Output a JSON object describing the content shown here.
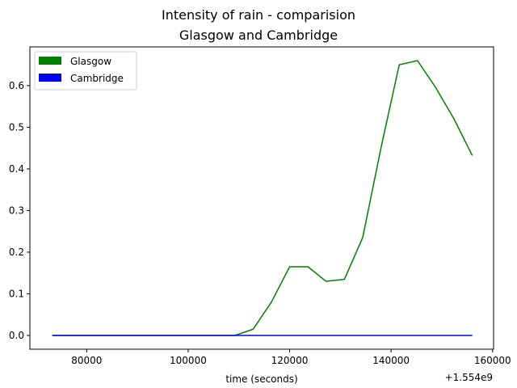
{
  "chart_data": {
    "type": "line",
    "title": "Intensity of rain - comparision",
    "subtitle": "Glasgow and Cambridge",
    "xlabel": "time (seconds)",
    "ylabel": "",
    "x_offset_label": "+1.554e9",
    "xlim": [
      1554068800,
      1554160200
    ],
    "ylim": [
      -0.033,
      0.693
    ],
    "x_ticks": [
      {
        "value": 1554080000,
        "label": "80000"
      },
      {
        "value": 1554100000,
        "label": "100000"
      },
      {
        "value": 1554120000,
        "label": "120000"
      },
      {
        "value": 1554140000,
        "label": "140000"
      },
      {
        "value": 1554160000,
        "label": "160000"
      }
    ],
    "y_ticks": [
      {
        "value": 0.0,
        "label": "0.0"
      },
      {
        "value": 0.1,
        "label": "0.1"
      },
      {
        "value": 0.2,
        "label": "0.2"
      },
      {
        "value": 0.3,
        "label": "0.3"
      },
      {
        "value": 0.4,
        "label": "0.4"
      },
      {
        "value": 0.5,
        "label": "0.5"
      },
      {
        "value": 0.6,
        "label": "0.6"
      }
    ],
    "grid": false,
    "legend_position": "top-left",
    "series": [
      {
        "name": "Glasgow",
        "color": "#008000",
        "points": [
          [
            1554073200,
            0.0
          ],
          [
            1554076800,
            0.0
          ],
          [
            1554080400,
            0.0
          ],
          [
            1554084000,
            0.0
          ],
          [
            1554087600,
            0.0
          ],
          [
            1554091200,
            0.0
          ],
          [
            1554094800,
            0.0
          ],
          [
            1554098400,
            0.0
          ],
          [
            1554102000,
            0.0
          ],
          [
            1554105600,
            0.0
          ],
          [
            1554109200,
            0.0
          ],
          [
            1554112800,
            0.015
          ],
          [
            1554116400,
            0.08
          ],
          [
            1554120000,
            0.165
          ],
          [
            1554123600,
            0.165
          ],
          [
            1554127200,
            0.13
          ],
          [
            1554130800,
            0.135
          ],
          [
            1554134400,
            0.235
          ],
          [
            1554138000,
            0.45
          ],
          [
            1554141600,
            0.65
          ],
          [
            1554145200,
            0.66
          ],
          [
            1554148800,
            0.595
          ],
          [
            1554152400,
            0.52
          ],
          [
            1554156000,
            0.432
          ]
        ]
      },
      {
        "name": "Cambridge",
        "color": "#0000ff",
        "points": [
          [
            1554073200,
            0.0
          ],
          [
            1554076800,
            0.0
          ],
          [
            1554080400,
            0.0
          ],
          [
            1554084000,
            0.0
          ],
          [
            1554087600,
            0.0
          ],
          [
            1554091200,
            0.0
          ],
          [
            1554094800,
            0.0
          ],
          [
            1554098400,
            0.0
          ],
          [
            1554102000,
            0.0
          ],
          [
            1554105600,
            0.0
          ],
          [
            1554109200,
            0.0
          ],
          [
            1554112800,
            0.0
          ],
          [
            1554116400,
            0.0
          ],
          [
            1554120000,
            0.0
          ],
          [
            1554123600,
            0.0
          ],
          [
            1554127200,
            0.0
          ],
          [
            1554130800,
            0.0
          ],
          [
            1554134400,
            0.0
          ],
          [
            1554138000,
            0.0
          ],
          [
            1554141600,
            0.0
          ],
          [
            1554145200,
            0.0
          ],
          [
            1554148800,
            0.0
          ],
          [
            1554152400,
            0.0
          ],
          [
            1554156000,
            0.0
          ]
        ]
      }
    ]
  }
}
